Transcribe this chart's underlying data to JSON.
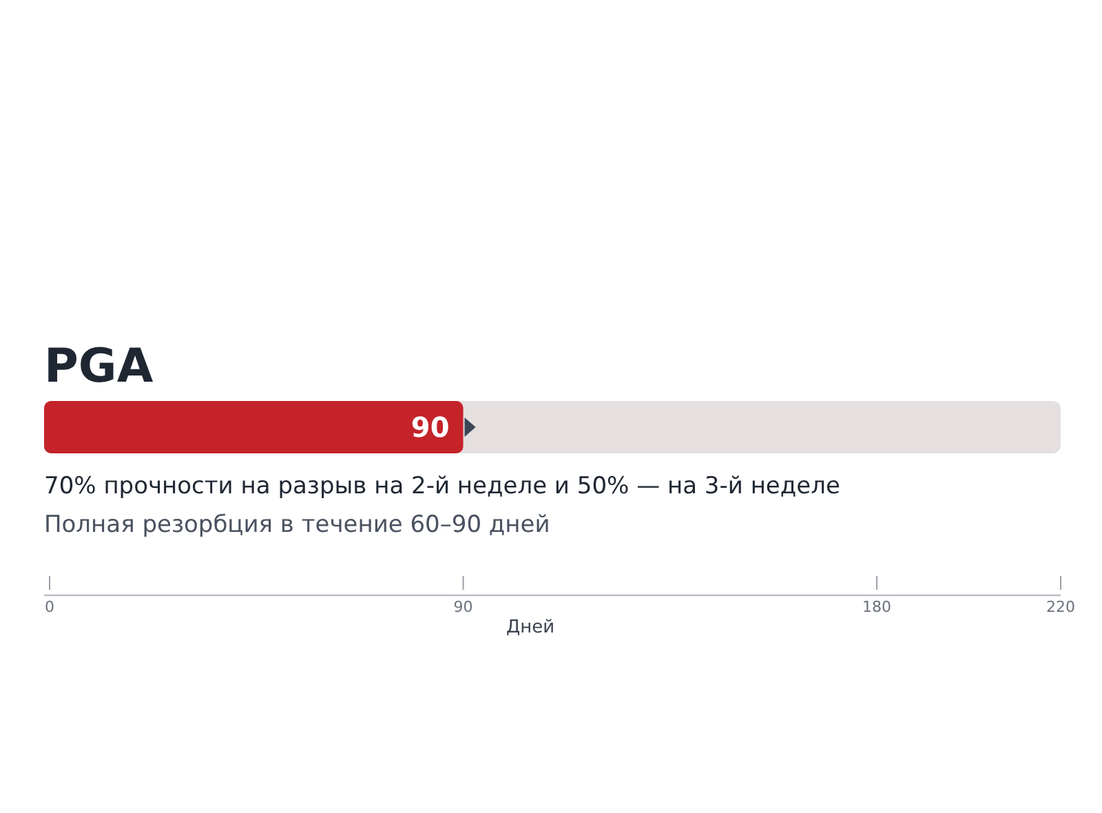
{
  "chart_data": {
    "type": "bar",
    "orientation": "horizontal",
    "categories": [
      "PGA"
    ],
    "values": [
      90
    ],
    "color": "#c4232a",
    "data_labels": true,
    "xlim": [
      0,
      220
    ],
    "xticks": [
      0,
      90,
      180,
      220
    ],
    "xlabel": "Дней",
    "annotations": [
      "70% прочности на разрыв на 2-й неделе и 50% — на 3-й неделе",
      "Полная резорбция в течение 60–90 дней"
    ]
  }
}
